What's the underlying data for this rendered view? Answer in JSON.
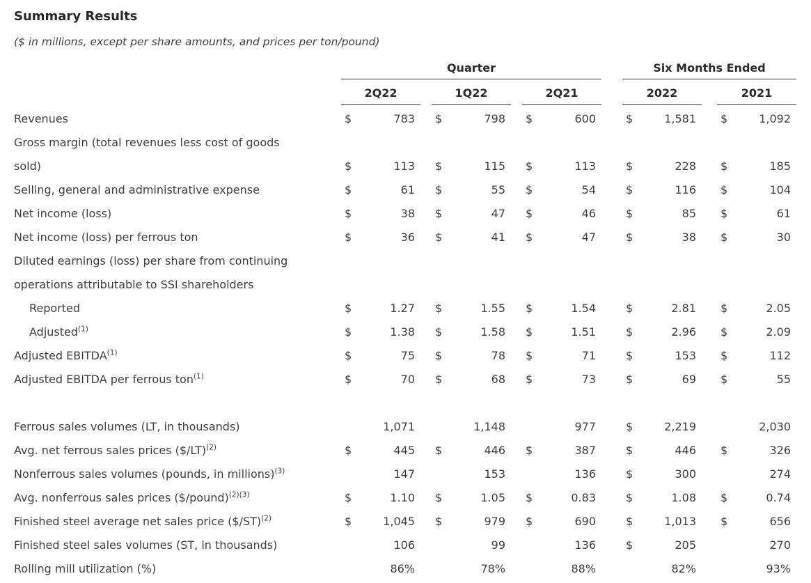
{
  "title": "Summary Results",
  "subtitle": "($ in millions, except per share amounts, and prices per ton/pound)",
  "colors": {
    "text": "#3f3f3f",
    "heading": "#262626",
    "rule": "#333333",
    "background": "#ffffff"
  },
  "table": {
    "groups": [
      {
        "label": "Quarter",
        "cols": [
          "2Q22",
          "1Q22",
          "2Q21"
        ]
      },
      {
        "label": "Six Months Ended",
        "cols": [
          "2022",
          "2021"
        ]
      }
    ],
    "rows": [
      {
        "label": "Revenues",
        "values": [
          [
            "$",
            "783"
          ],
          [
            "$",
            "798"
          ],
          [
            "$",
            "600"
          ],
          [
            "$",
            "1,581"
          ],
          [
            "$",
            "1,092"
          ]
        ]
      },
      {
        "label": "Gross margin (total revenues less cost of goods\nsold)",
        "values": [
          [
            "$",
            "113"
          ],
          [
            "$",
            "115"
          ],
          [
            "$",
            "113"
          ],
          [
            "$",
            "228"
          ],
          [
            "$",
            "185"
          ]
        ]
      },
      {
        "label": "Selling, general and administrative expense",
        "values": [
          [
            "$",
            "61"
          ],
          [
            "$",
            "55"
          ],
          [
            "$",
            "54"
          ],
          [
            "$",
            "116"
          ],
          [
            "$",
            "104"
          ]
        ]
      },
      {
        "label": "Net income (loss)",
        "values": [
          [
            "$",
            "38"
          ],
          [
            "$",
            "47"
          ],
          [
            "$",
            "46"
          ],
          [
            "$",
            "85"
          ],
          [
            "$",
            "61"
          ]
        ]
      },
      {
        "label": "Net income (loss) per ferrous ton",
        "values": [
          [
            "$",
            "36"
          ],
          [
            "$",
            "41"
          ],
          [
            "$",
            "47"
          ],
          [
            "$",
            "38"
          ],
          [
            "$",
            "30"
          ]
        ]
      },
      {
        "label": "Diluted earnings (loss) per share from continuing\noperations attributable to SSI shareholders",
        "values": []
      },
      {
        "label": "Reported",
        "indent": 1,
        "values": [
          [
            "$",
            "1.27"
          ],
          [
            "$",
            "1.55"
          ],
          [
            "$",
            "1.54"
          ],
          [
            "$",
            "2.81"
          ],
          [
            "$",
            "2.05"
          ]
        ]
      },
      {
        "label": "Adjusted",
        "sup": "(1)",
        "indent": 1,
        "values": [
          [
            "$",
            "1.38"
          ],
          [
            "$",
            "1.58"
          ],
          [
            "$",
            "1.51"
          ],
          [
            "$",
            "2.96"
          ],
          [
            "$",
            "2.09"
          ]
        ]
      },
      {
        "label": "Adjusted EBITDA",
        "sup": "(1)",
        "values": [
          [
            "$",
            "75"
          ],
          [
            "$",
            "78"
          ],
          [
            "$",
            "71"
          ],
          [
            "$",
            "153"
          ],
          [
            "$",
            "112"
          ]
        ]
      },
      {
        "label": "Adjusted EBITDA per ferrous ton",
        "sup": "(1)",
        "values": [
          [
            "$",
            "70"
          ],
          [
            "$",
            "68"
          ],
          [
            "$",
            "73"
          ],
          [
            "$",
            "69"
          ],
          [
            "$",
            "55"
          ]
        ]
      },
      {
        "spacer": true
      },
      {
        "label": "Ferrous sales volumes (LT, in thousands)",
        "values": [
          [
            "",
            "1,071"
          ],
          [
            "",
            "1,148"
          ],
          [
            "",
            "977"
          ],
          [
            "$",
            "2,219"
          ],
          [
            "",
            "2,030"
          ]
        ]
      },
      {
        "label": "Avg. net ferrous sales prices ($/LT)",
        "sup": "(2)",
        "values": [
          [
            "$",
            "445"
          ],
          [
            "$",
            "446"
          ],
          [
            "$",
            "387"
          ],
          [
            "$",
            "446"
          ],
          [
            "$",
            "326"
          ]
        ]
      },
      {
        "label": "Nonferrous sales volumes (pounds, in millions)",
        "sup": "(3)",
        "values": [
          [
            "",
            "147"
          ],
          [
            "",
            "153"
          ],
          [
            "",
            "136"
          ],
          [
            "$",
            "300"
          ],
          [
            "",
            "274"
          ]
        ]
      },
      {
        "label": "Avg. nonferrous sales prices ($/pound)",
        "sup": "(2)(3)",
        "values": [
          [
            "$",
            "1.10"
          ],
          [
            "$",
            "1.05"
          ],
          [
            "$",
            "0.83"
          ],
          [
            "$",
            "1.08"
          ],
          [
            "$",
            "0.74"
          ]
        ]
      },
      {
        "label": "Finished steel average net sales price ($/ST)",
        "sup": "(2)",
        "values": [
          [
            "$",
            "1,045"
          ],
          [
            "$",
            "979"
          ],
          [
            "$",
            "690"
          ],
          [
            "$",
            "1,013"
          ],
          [
            "$",
            "656"
          ]
        ]
      },
      {
        "label": "Finished steel sales volumes (ST, in thousands)",
        "values": [
          [
            "",
            "106"
          ],
          [
            "",
            "99"
          ],
          [
            "",
            "136"
          ],
          [
            "$",
            "205"
          ],
          [
            "",
            "270"
          ]
        ]
      },
      {
        "label": "Rolling mill utilization (%)",
        "values": [
          [
            "",
            "86%"
          ],
          [
            "",
            "78%"
          ],
          [
            "",
            "88%"
          ],
          [
            "",
            "82%"
          ],
          [
            "",
            "93%"
          ]
        ]
      }
    ]
  }
}
